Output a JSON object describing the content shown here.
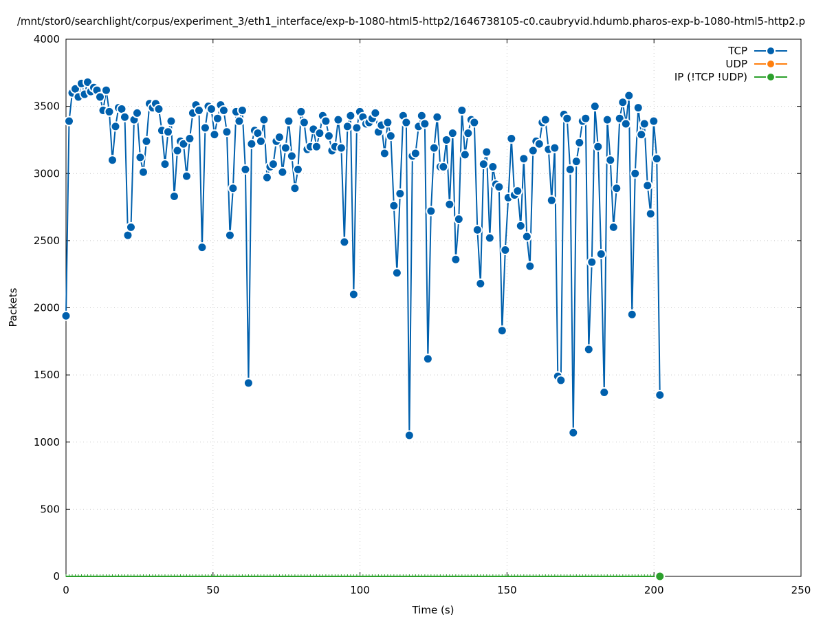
{
  "chart_data": {
    "type": "line",
    "title": "/mnt/stor0/searchlight/corpus/experiment_3/eth1_interface/exp-b-1080-html5-http2/1646738105-c0.caubryvid.hdumb.pharos-exp-b-1080-html5-http2.p",
    "xlabel": "Time (s)",
    "ylabel": "Packets",
    "xlim": [
      0,
      250
    ],
    "ylim": [
      0,
      4000
    ],
    "xticks": [
      "0",
      "50",
      "100",
      "150",
      "200",
      "250"
    ],
    "yticks": [
      "0",
      "500",
      "1000",
      "1500",
      "2000",
      "2500",
      "3000",
      "3500",
      "4000"
    ],
    "grid": true,
    "legend_position": "top-right",
    "x_start": 0,
    "x_end": 202,
    "series": [
      {
        "name": "TCP",
        "color": "#0060ad",
        "values": [
          1940,
          3390,
          3600,
          3630,
          3570,
          3670,
          3590,
          3680,
          3610,
          3640,
          3620,
          3570,
          3470,
          3620,
          3460,
          3100,
          3350,
          3490,
          3480,
          3420,
          2540,
          2600,
          3400,
          3450,
          3120,
          3010,
          3240,
          3520,
          3490,
          3520,
          3480,
          3320,
          3070,
          3310,
          3390,
          2830,
          3170,
          3240,
          3220,
          2980,
          3260,
          3450,
          3510,
          3470,
          2450,
          3340,
          3500,
          3480,
          3290,
          3410,
          3510,
          3470,
          3310,
          2540,
          2890,
          3460,
          3390,
          3470,
          3030,
          1440,
          3220,
          3320,
          3300,
          3240,
          3400,
          2970,
          3050,
          3070,
          3240,
          3270,
          3010,
          3190,
          3390,
          3130,
          2890,
          3030,
          3460,
          3380,
          3180,
          3200,
          3330,
          3200,
          3300,
          3430,
          3390,
          3280,
          3170,
          3200,
          3400,
          3190,
          2490,
          3350,
          3430,
          2100,
          3340,
          3460,
          3420,
          3370,
          3380,
          3410,
          3450,
          3310,
          3360,
          3150,
          3380,
          3280,
          2760,
          2260,
          2850,
          3430,
          3380,
          1050,
          3130,
          3150,
          3350,
          3430,
          3370,
          1620,
          2720,
          3190,
          3420,
          3050,
          3050,
          3250,
          2770,
          3300,
          2360,
          2660,
          3470,
          3140,
          3300,
          3400,
          3380,
          2580,
          2180,
          3070,
          3160,
          2520,
          3050,
          2920,
          2900,
          1830,
          2430,
          2820,
          3260,
          2840,
          2870,
          2610,
          3110,
          2530,
          2310,
          3170,
          3240,
          3220,
          3380,
          3400,
          3180,
          2800,
          3190,
          1490,
          1460,
          3440,
          3410,
          3030,
          1070,
          3090,
          3230,
          3390,
          3410,
          1690,
          2340,
          3500,
          3200,
          2400,
          1370,
          3400,
          3100,
          2600,
          2890,
          3410,
          3530,
          3370,
          3580,
          1950,
          3000,
          3490,
          3290,
          3370,
          2910,
          2700,
          3390,
          3110,
          1350
        ]
      },
      {
        "name": "UDP",
        "color": "#ff7f0e",
        "values": []
      },
      {
        "name": "IP (!TCP  !UDP)",
        "color": "#2ca02c",
        "values": [
          0
        ]
      }
    ]
  }
}
